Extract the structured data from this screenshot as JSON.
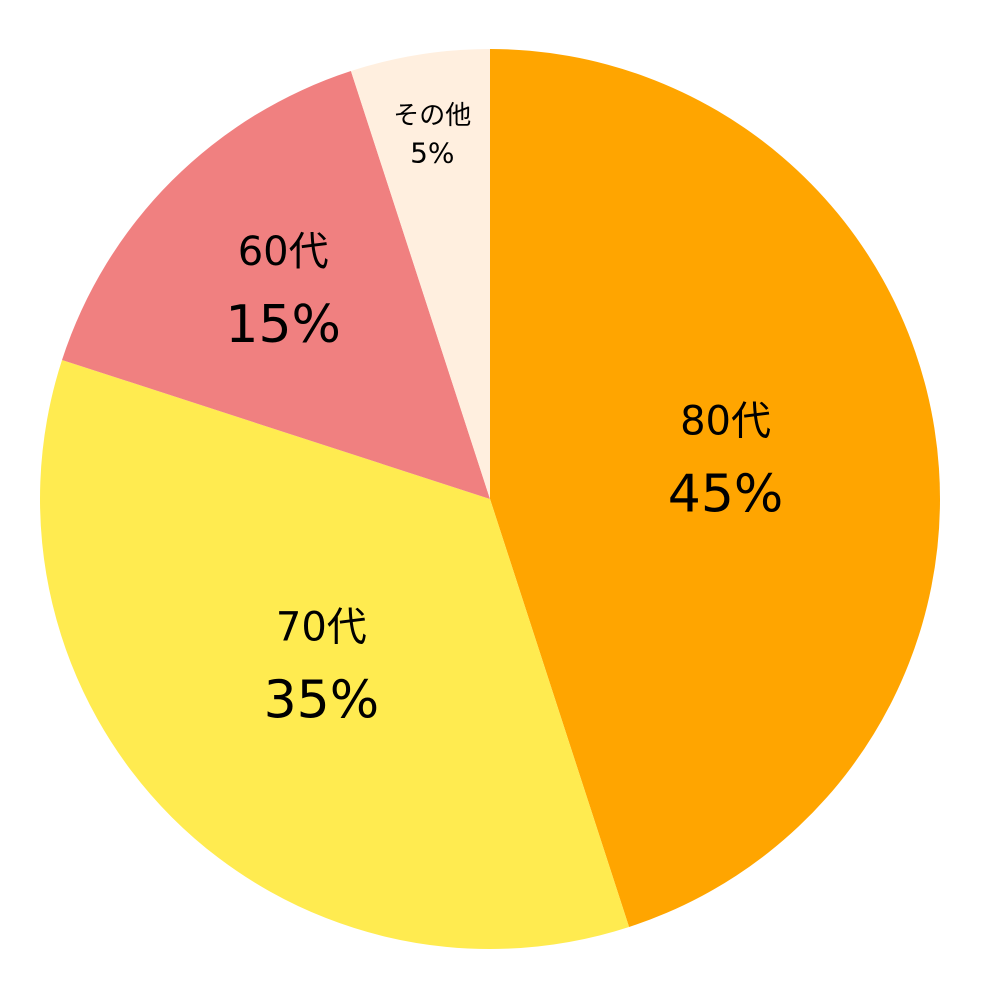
{
  "chart_data": {
    "type": "pie",
    "categories": [
      "80代",
      "70代",
      "60代",
      "その他"
    ],
    "values": [
      45,
      35,
      15,
      5
    ],
    "value_labels": [
      "45%",
      "35%",
      "15%",
      "5%"
    ],
    "colors": [
      "#ffa500",
      "#ffeb50",
      "#f08080",
      "#ffefdf"
    ]
  }
}
